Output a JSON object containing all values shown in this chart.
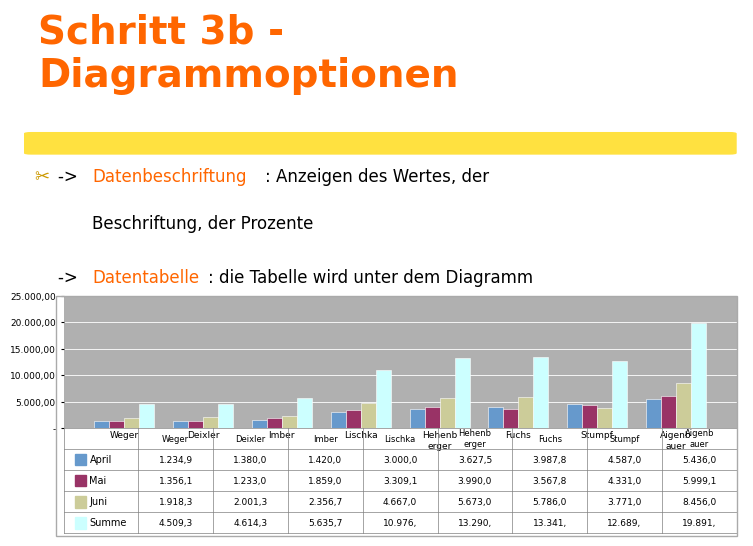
{
  "title_line1": "Schritt 3b -",
  "title_line2": "Diagrammoptionen",
  "title_color": "#FF6600",
  "highlight_color": "#FFD700",
  "bullet_color": "#CC9900",
  "bullet": "✂",
  "link_color": "#FF6600",
  "text_color": "#000000",
  "link1": "Datenbeschriftung",
  "link2": "Datentabelle",
  "categories": [
    "Weger",
    "Deixler",
    "Imber",
    "Lischka",
    "Hehenb\nerger",
    "Fuchs",
    "Stumpf",
    "Aigenb\nauer"
  ],
  "series": {
    "April": [
      1234.9,
      1380.0,
      1420.0,
      3000.0,
      3627.5,
      3987.8,
      4587.0,
      5436.0
    ],
    "Mai": [
      1356.1,
      1233.0,
      1859.0,
      3309.1,
      3990.0,
      3567.8,
      4331.0,
      5999.1
    ],
    "Juni": [
      1918.3,
      2001.3,
      2356.7,
      4667.0,
      5673.0,
      5786.0,
      3771.0,
      8456.0
    ],
    "Summe": [
      4509.3,
      4614.3,
      5635.7,
      10976.0,
      13290.0,
      13341.0,
      12689.0,
      19891.0
    ]
  },
  "colors": {
    "April": "#6699CC",
    "Mai": "#993366",
    "Juni": "#CCCC99",
    "Summe": "#CCFFFF"
  },
  "ylim": [
    0,
    25000
  ],
  "yticks": [
    0,
    5000,
    10000,
    15000,
    20000,
    25000
  ],
  "ytick_labels": [
    "-",
    "5.000,00",
    "10.000,00",
    "15.000,00",
    "20.000,00",
    "25.000,00"
  ],
  "chart_bg": "#B0B0B0",
  "table_data": {
    "rows": [
      "April",
      "Mai",
      "Juni",
      "Summe"
    ],
    "cols": [
      "Weger",
      "Deixler",
      "Imber",
      "Lischka",
      "Hehenb\nerger",
      "Fuchs",
      "Stumpf",
      "Aigenb\nauer"
    ],
    "values": [
      [
        "1.234,9",
        "1.380,0",
        "1.420,0",
        "3.000,0",
        "3.627,5",
        "3.987,8",
        "4.587,0",
        "5.436,0"
      ],
      [
        "1.356,1",
        "1.233,0",
        "1.859,0",
        "3.309,1",
        "3.990,0",
        "3.567,8",
        "4.331,0",
        "5.999,1"
      ],
      [
        "1.918,3",
        "2.001,3",
        "2.356,7",
        "4.667,0",
        "5.673,0",
        "5.786,0",
        "3.771,0",
        "8.456,0"
      ],
      [
        "4.509,3",
        "4.614,3",
        "5.635,7",
        "10.976,",
        "13.290,",
        "13.341,",
        "12.689,",
        "19.891,"
      ]
    ]
  },
  "background": "#FFFFFF"
}
